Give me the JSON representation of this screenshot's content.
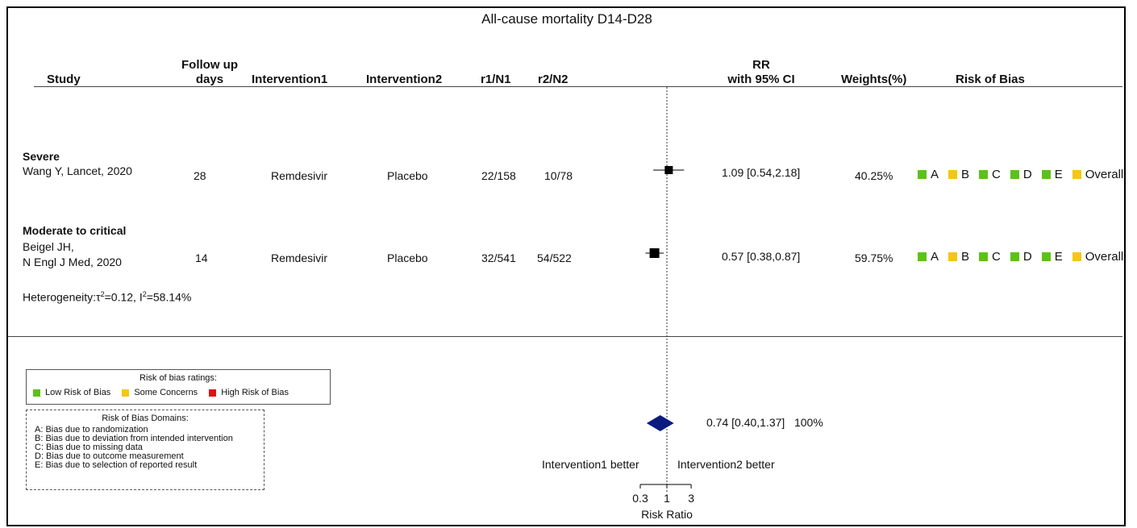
{
  "title": "All-cause mortality D14-D28",
  "colors": {
    "low": "#5cc21a",
    "some": "#f5c518",
    "high": "#dd1111",
    "diamond": "#0b1a80"
  },
  "columns": {
    "study": "Study",
    "follow_up_1": "Follow up",
    "follow_up_2": "days",
    "intervention1": "Intervention1",
    "intervention2": "Intervention2",
    "r1n1": "r1/N1",
    "r2n2": "r2/N2",
    "rr_1": "RR",
    "rr_2": "with 95% CI",
    "weights": "Weights(%)",
    "rob": "Risk of Bias"
  },
  "subgroups": [
    {
      "label": "Severe",
      "study_lines": [
        "Wang Y, Lancet, 2020"
      ],
      "days": "28",
      "intervention1": "Remdesivir",
      "intervention2": "Placebo",
      "r1n1": "22/158",
      "r2n2": "10/78",
      "rr_text": "1.09 [0.54,2.18]",
      "weight": "40.25%",
      "rob": [
        {
          "domain": "A",
          "level": "low"
        },
        {
          "domain": "B",
          "level": "some"
        },
        {
          "domain": "C",
          "level": "low"
        },
        {
          "domain": "D",
          "level": "low"
        },
        {
          "domain": "E",
          "level": "low"
        },
        {
          "domain": "Overall",
          "level": "some"
        }
      ]
    },
    {
      "label": "Moderate to critical",
      "study_lines": [
        "Beigel JH,",
        "N Engl J Med, 2020"
      ],
      "days": "14",
      "intervention1": "Remdesivir",
      "intervention2": "Placebo",
      "r1n1": "32/541",
      "r2n2": "54/522",
      "rr_text": "0.57 [0.38,0.87]",
      "weight": "59.75%",
      "rob": [
        {
          "domain": "A",
          "level": "low"
        },
        {
          "domain": "B",
          "level": "some"
        },
        {
          "domain": "C",
          "level": "low"
        },
        {
          "domain": "D",
          "level": "low"
        },
        {
          "domain": "E",
          "level": "low"
        },
        {
          "domain": "Overall",
          "level": "some"
        }
      ]
    }
  ],
  "heterogeneity": {
    "prefix": "Heterogeneity:",
    "tau_sym": "τ",
    "tau_val": "=0.12, ",
    "i_sym": "I",
    "i_val": "=58.14%",
    "sup": "2"
  },
  "pooled": {
    "text": "0.74 [0.40,1.37]",
    "weight": "100%"
  },
  "legend_ratings": {
    "title": "Risk of bias ratings:",
    "items": [
      {
        "label": "Low Risk of Bias",
        "level": "low"
      },
      {
        "label": "Some Concerns",
        "level": "some"
      },
      {
        "label": "High Risk of Bias",
        "level": "high"
      }
    ]
  },
  "legend_domains": {
    "title": "Risk of Bias Domains:",
    "items": [
      "A: Bias due to randomization",
      "B: Bias due to deviation from intended intervention",
      "C: Bias due to missing data",
      "D: Bias due to outcome measurement",
      "E: Bias due to selection of reported result"
    ]
  },
  "favours_left": "Intervention1 better",
  "favours_right": "Intervention2 better",
  "chart_data": {
    "type": "forest",
    "title": "All-cause mortality D14-D28",
    "xlabel": "Risk Ratio",
    "x_scale": "log",
    "xlim": [
      0.3,
      3
    ],
    "xticks": [
      0.3,
      1,
      3
    ],
    "xtick_labels": [
      "0.3",
      "1",
      "3"
    ],
    "null_line": 1,
    "studies": [
      {
        "name": "Wang Y, Lancet, 2020",
        "rr": 1.09,
        "lower": 0.54,
        "upper": 2.18,
        "weight": 40.25
      },
      {
        "name": "Beigel JH, N Engl J Med, 2020",
        "rr": 0.57,
        "lower": 0.38,
        "upper": 0.87,
        "weight": 59.75
      }
    ],
    "pooled": {
      "rr": 0.74,
      "lower": 0.4,
      "upper": 1.37,
      "weight": 100
    }
  }
}
